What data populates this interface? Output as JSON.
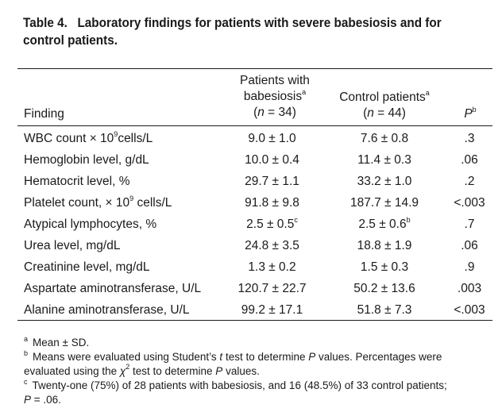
{
  "title": {
    "number": "Table 4.",
    "line1": "Laboratory findings for patients with severe babesiosis and for",
    "line2": "control patients."
  },
  "header": {
    "finding": "Finding",
    "babesiosis_line1": "Patients with",
    "babesiosis_line2": "babesiosis",
    "babesiosis_sup": "a",
    "babesiosis_n_open": "(",
    "babesiosis_n_var": "n",
    "babesiosis_n_val": " = 34)",
    "control_line1": "Control patients",
    "control_sup": "a",
    "control_n_open": "(",
    "control_n_var": "n",
    "control_n_val": " = 44)",
    "p_var": "P",
    "p_sup": "b"
  },
  "rows": [
    {
      "finding_pre": "WBC count × 10",
      "finding_sup": "9",
      "finding_post": "cells/L",
      "babesiosis": "9.0 ± 1.0",
      "babesiosis_sup": "",
      "control": "7.6 ± 0.8",
      "control_sup": "",
      "p": ".3"
    },
    {
      "finding_pre": "Hemoglobin level, g/dL",
      "finding_sup": "",
      "finding_post": "",
      "babesiosis": "10.0 ± 0.4",
      "babesiosis_sup": "",
      "control": "11.4 ± 0.3",
      "control_sup": "",
      "p": ".06"
    },
    {
      "finding_pre": "Hematocrit level, %",
      "finding_sup": "",
      "finding_post": "",
      "babesiosis": "29.7 ± 1.1",
      "babesiosis_sup": "",
      "control": "33.2 ± 1.0",
      "control_sup": "",
      "p": ".2"
    },
    {
      "finding_pre": "Platelet count, × 10",
      "finding_sup": "9",
      "finding_post": " cells/L",
      "babesiosis": "91.8 ± 9.8",
      "babesiosis_sup": "",
      "control": "187.7 ± 14.9",
      "control_sup": "",
      "p": "<.003"
    },
    {
      "finding_pre": "Atypical lymphocytes, %",
      "finding_sup": "",
      "finding_post": "",
      "babesiosis": "2.5 ± 0.5",
      "babesiosis_sup": "c",
      "control": "2.5 ± 0.6",
      "control_sup": "b",
      "p": ".7"
    },
    {
      "finding_pre": "Urea level, mg/dL",
      "finding_sup": "",
      "finding_post": "",
      "babesiosis": "24.8 ± 3.5",
      "babesiosis_sup": "",
      "control": "18.8 ± 1.9",
      "control_sup": "",
      "p": ".06"
    },
    {
      "finding_pre": "Creatinine level, mg/dL",
      "finding_sup": "",
      "finding_post": "",
      "babesiosis": "1.3 ± 0.2",
      "babesiosis_sup": "",
      "control": "1.5 ± 0.3",
      "control_sup": "",
      "p": ".9"
    },
    {
      "finding_pre": "Aspartate aminotransferase, U/L",
      "finding_sup": "",
      "finding_post": "",
      "babesiosis": "120.7 ± 22.7",
      "babesiosis_sup": "",
      "control": "50.2 ± 13.6",
      "control_sup": "",
      "p": ".003"
    },
    {
      "finding_pre": "Alanine aminotransferase, U/L",
      "finding_sup": "",
      "finding_post": "",
      "babesiosis": "99.2 ± 17.1",
      "babesiosis_sup": "",
      "control": "51.8 ± 7.3",
      "control_sup": "",
      "p": "<.003"
    }
  ],
  "footnotes": {
    "a_mark": "a",
    "a_text": "Mean ± SD.",
    "b_mark": "b",
    "b_t1": "Means were evaluated using Student’s ",
    "b_t_var": "t",
    "b_t2": " test to determine ",
    "b_p_var": "P",
    "b_t3": " values. Percentages were",
    "b_t4": "evaluated using the ",
    "b_chi": "χ",
    "b_chi_sup": "2",
    "b_t5": " test to determine ",
    "b_p_var2": "P",
    "b_t6": " values.",
    "c_mark": "c",
    "c_text1": "Twenty-one (75%) of 28 patients with babesiosis, and 16 (48.5%) of 33 control patients;",
    "c_p_var": "P",
    "c_text2": " = .06."
  }
}
